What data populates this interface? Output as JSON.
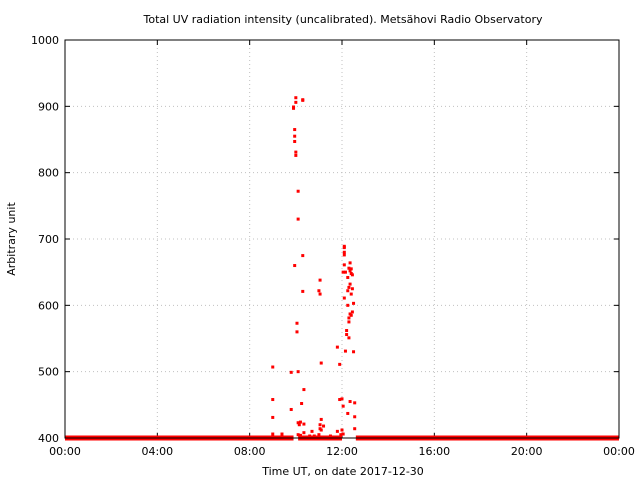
{
  "chart_data": {
    "type": "scatter",
    "title": "Total UV radiation intensity (uncalibrated). Metsähovi Radio Observatory",
    "xlabel": "Time UT, on date 2017-12-30",
    "ylabel": "Arbitrary unit",
    "xlim": [
      0,
      24
    ],
    "ylim": [
      400,
      1000
    ],
    "x_ticks": [
      {
        "value": 0,
        "label": "00:00"
      },
      {
        "value": 4,
        "label": "04:00"
      },
      {
        "value": 8,
        "label": "08:00"
      },
      {
        "value": 12,
        "label": "12:00"
      },
      {
        "value": 16,
        "label": "16:00"
      },
      {
        "value": 20,
        "label": "20:00"
      },
      {
        "value": 24,
        "label": "00:00"
      }
    ],
    "y_ticks": [
      {
        "value": 400,
        "label": "400"
      },
      {
        "value": 500,
        "label": "500"
      },
      {
        "value": 600,
        "label": "600"
      },
      {
        "value": 700,
        "label": "700"
      },
      {
        "value": 800,
        "label": "800"
      },
      {
        "value": 900,
        "label": "900"
      },
      {
        "value": 1000,
        "label": "1000"
      }
    ],
    "grid": true,
    "color": "#ff0000",
    "baseline": {
      "y": 400,
      "x_ranges": [
        [
          0,
          9.9
        ],
        [
          10.1,
          12.0
        ],
        [
          12.6,
          24
        ]
      ]
    },
    "series": [
      {
        "points": [
          [
            9.0,
            507
          ],
          [
            9.0,
            458
          ],
          [
            9.0,
            431
          ],
          [
            9.0,
            406
          ],
          [
            9.4,
            406
          ],
          [
            9.8,
            499
          ],
          [
            9.8,
            443
          ],
          [
            9.9,
            897
          ],
          [
            9.9,
            899
          ],
          [
            9.95,
            865
          ],
          [
            9.95,
            855
          ],
          [
            9.95,
            847
          ],
          [
            9.95,
            660
          ],
          [
            10.0,
            913
          ],
          [
            10.0,
            906
          ],
          [
            10.0,
            831
          ],
          [
            10.0,
            826
          ],
          [
            10.05,
            573
          ],
          [
            10.05,
            560
          ],
          [
            10.1,
            772
          ],
          [
            10.1,
            730
          ],
          [
            10.1,
            500
          ],
          [
            10.1,
            423
          ],
          [
            10.1,
            405
          ],
          [
            10.15,
            420
          ],
          [
            10.2,
            424
          ],
          [
            10.2,
            404
          ],
          [
            10.25,
            452
          ],
          [
            10.3,
            909
          ],
          [
            10.3,
            910
          ],
          [
            10.3,
            675
          ],
          [
            10.3,
            621
          ],
          [
            10.35,
            473
          ],
          [
            10.35,
            421
          ],
          [
            10.35,
            408
          ],
          [
            10.6,
            403
          ],
          [
            10.7,
            410
          ],
          [
            10.8,
            403
          ],
          [
            11.0,
            622
          ],
          [
            11.0,
            405
          ],
          [
            11.05,
            638
          ],
          [
            11.05,
            617
          ],
          [
            11.05,
            420
          ],
          [
            11.05,
            414
          ],
          [
            11.1,
            513
          ],
          [
            11.1,
            428
          ],
          [
            11.1,
            412
          ],
          [
            11.2,
            418
          ],
          [
            11.5,
            403
          ],
          [
            11.8,
            537
          ],
          [
            11.8,
            410
          ],
          [
            11.9,
            511
          ],
          [
            11.9,
            458
          ],
          [
            11.95,
            405
          ],
          [
            12.0,
            459
          ],
          [
            12.0,
            412
          ],
          [
            12.05,
            650
          ],
          [
            12.05,
            448
          ],
          [
            12.05,
            406
          ],
          [
            12.1,
            689
          ],
          [
            12.1,
            687
          ],
          [
            12.1,
            680
          ],
          [
            12.1,
            676
          ],
          [
            12.1,
            661
          ],
          [
            12.1,
            611
          ],
          [
            12.15,
            650
          ],
          [
            12.15,
            531
          ],
          [
            12.2,
            562
          ],
          [
            12.2,
            556
          ],
          [
            12.25,
            642
          ],
          [
            12.25,
            622
          ],
          [
            12.25,
            600
          ],
          [
            12.25,
            437
          ],
          [
            12.3,
            656
          ],
          [
            12.3,
            627
          ],
          [
            12.3,
            581
          ],
          [
            12.3,
            575
          ],
          [
            12.3,
            551
          ],
          [
            12.35,
            664
          ],
          [
            12.35,
            652
          ],
          [
            12.35,
            632
          ],
          [
            12.35,
            587
          ],
          [
            12.35,
            455
          ],
          [
            12.4,
            655
          ],
          [
            12.4,
            648
          ],
          [
            12.4,
            617
          ],
          [
            12.4,
            585
          ],
          [
            12.45,
            646
          ],
          [
            12.45,
            625
          ],
          [
            12.45,
            590
          ],
          [
            12.5,
            603
          ],
          [
            12.5,
            530
          ],
          [
            12.55,
            453
          ],
          [
            12.55,
            432
          ],
          [
            12.55,
            414
          ]
        ]
      }
    ]
  }
}
